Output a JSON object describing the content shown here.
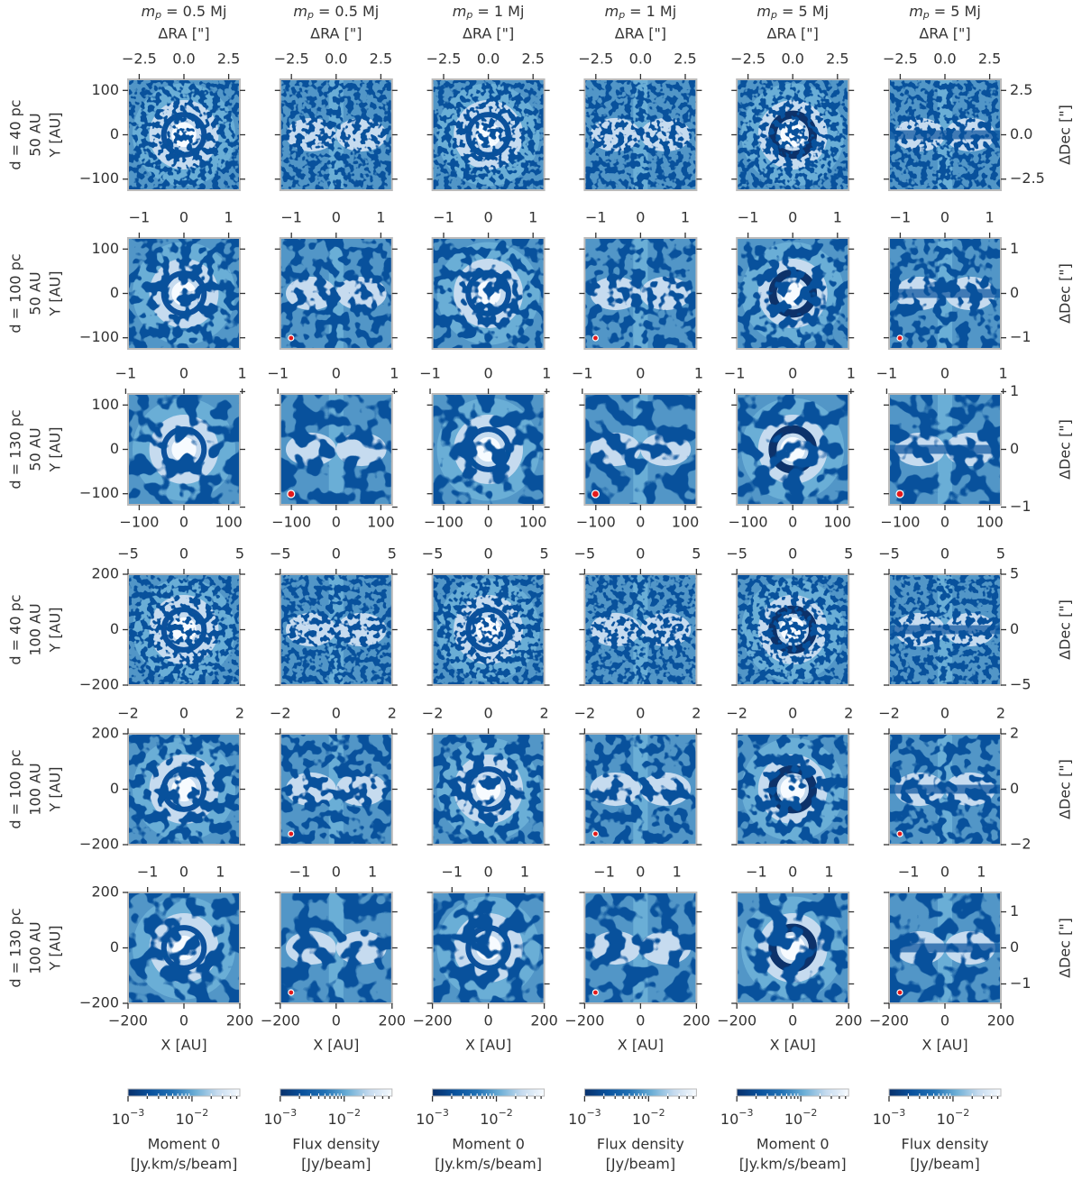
{
  "chart_data": {
    "type": "image_grid",
    "mass_symbol": "m",
    "mass_subscript": "p",
    "xlabel": "X [AU]",
    "ylabel": "Y [AU]",
    "xlabel_top": "ΔRA [\"]",
    "ylabel_right": "ΔDec [\"]",
    "columns": [
      {
        "mass": "= 0.5 Mj",
        "pattern": "moment",
        "ring": false,
        "beam": false,
        "quantity": "Moment 0",
        "unit": "[Jy.km/s/beam]"
      },
      {
        "mass": "= 0.5 Mj",
        "pattern": "flux",
        "ring": false,
        "beam": true,
        "quantity": "Flux density",
        "unit": "[Jy/beam]"
      },
      {
        "mass": "= 1 Mj",
        "pattern": "moment",
        "ring": false,
        "beam": false,
        "quantity": "Moment 0",
        "unit": "[Jy.km/s/beam]"
      },
      {
        "mass": "= 1 Mj",
        "pattern": "flux",
        "ring": false,
        "beam": true,
        "quantity": "Flux density",
        "unit": "[Jy/beam]"
      },
      {
        "mass": "= 5 Mj",
        "pattern": "moment",
        "ring": true,
        "beam": false,
        "quantity": "Moment 0",
        "unit": "[Jy.km/s/beam]"
      },
      {
        "mass": "= 5 Mj",
        "pattern": "flux",
        "ring": true,
        "beam": true,
        "quantity": "Flux density",
        "unit": "[Jy/beam]"
      }
    ],
    "rows": [
      {
        "distance": "d = 40 pc",
        "size": "50 AU",
        "lim": [
          -125,
          125
        ],
        "yticks": [
          {
            "value": -100,
            "label": "−100"
          },
          0,
          100
        ],
        "sec_lim": [
          -3.125,
          3.125
        ],
        "sec_ticks": [
          {
            "value": -2.5,
            "label": "−2.5"
          },
          {
            "value": 0,
            "label": "0.0"
          },
          2.5
        ],
        "beam": false
      },
      {
        "distance": "d = 100 pc",
        "size": "50 AU",
        "lim": [
          -125,
          125
        ],
        "yticks": [
          {
            "value": -100,
            "label": "−100"
          },
          0,
          100
        ],
        "sec_lim": [
          -1.25,
          1.25
        ],
        "sec_ticks": [
          {
            "value": -1,
            "label": "−1"
          },
          0,
          1
        ],
        "beam": true
      },
      {
        "distance": "d = 130 pc",
        "size": "50 AU",
        "lim": [
          -125,
          125
        ],
        "yticks": [
          {
            "value": -100,
            "label": "−100"
          },
          0,
          100
        ],
        "sec_lim": [
          -0.96,
          0.96
        ],
        "sec_ticks": [
          {
            "value": -1,
            "label": "−1"
          },
          0,
          1
        ],
        "beam": true,
        "xticks": [
          {
            "value": -100,
            "label": "−100"
          },
          0,
          100
        ]
      },
      {
        "distance": "d = 40 pc",
        "size": "100 AU",
        "lim": [
          -200,
          200
        ],
        "yticks": [
          {
            "value": -200,
            "label": "−200"
          },
          0,
          200
        ],
        "sec_lim": [
          -5,
          5
        ],
        "sec_ticks": [
          {
            "value": -5,
            "label": "−5"
          },
          0,
          5
        ],
        "beam": false
      },
      {
        "distance": "d = 100 pc",
        "size": "100 AU",
        "lim": [
          -200,
          200
        ],
        "yticks": [
          {
            "value": -200,
            "label": "−200"
          },
          0,
          200
        ],
        "sec_lim": [
          -2,
          2
        ],
        "sec_ticks": [
          {
            "value": -2,
            "label": "−2"
          },
          0,
          2
        ],
        "beam": true
      },
      {
        "distance": "d = 130 pc",
        "size": "100 AU",
        "lim": [
          -200,
          200
        ],
        "yticks": [
          {
            "value": -200,
            "label": "−200"
          },
          0,
          200
        ],
        "sec_lim": [
          -1.538,
          1.538
        ],
        "sec_ticks": [
          {
            "value": -1,
            "label": "−1"
          },
          0,
          1
        ],
        "beam": true,
        "xticks": [
          {
            "value": -200,
            "label": "−200"
          },
          0,
          200
        ],
        "show_xlabel": true
      }
    ],
    "clim": [
      0.001,
      0.056
    ],
    "clog": true,
    "cticks": [
      {
        "value": 0.001,
        "base": "10",
        "exp": "−3"
      },
      {
        "value": 0.01,
        "base": "10",
        "exp": "−2"
      }
    ],
    "cminor": [
      0.002,
      0.003,
      0.004,
      0.005,
      0.006,
      0.007,
      0.008,
      0.009,
      0.02,
      0.03,
      0.04,
      0.05
    ],
    "cmap": [
      "#08306b",
      "#08519c",
      "#2171b5",
      "#6baed6",
      "#c6dbef",
      "#f7fbff"
    ]
  }
}
